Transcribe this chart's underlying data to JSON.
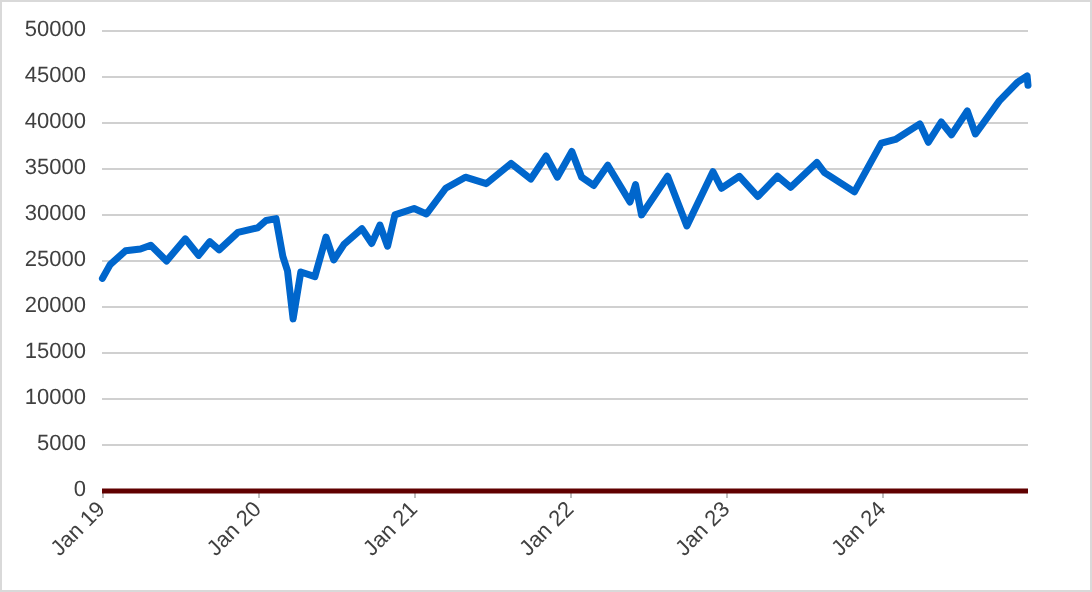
{
  "chart_data": {
    "type": "line",
    "x": [
      "2019-01-02",
      "2019-01-20",
      "2019-02-25",
      "2019-04-01",
      "2019-04-25",
      "2019-06-01",
      "2019-07-15",
      "2019-08-15",
      "2019-09-10",
      "2019-10-02",
      "2019-11-15",
      "2019-12-31",
      "2020-01-20",
      "2020-02-12",
      "2020-02-28",
      "2020-03-10",
      "2020-03-23",
      "2020-04-10",
      "2020-05-13",
      "2020-06-08",
      "2020-06-26",
      "2020-07-20",
      "2020-08-31",
      "2020-09-23",
      "2020-10-12",
      "2020-10-30",
      "2020-11-16",
      "2020-12-31",
      "2021-01-29",
      "2021-03-15",
      "2021-04-30",
      "2021-06-18",
      "2021-08-15",
      "2021-09-30",
      "2021-11-05",
      "2021-12-01",
      "2022-01-04",
      "2022-01-27",
      "2022-02-24",
      "2022-03-29",
      "2022-05-20",
      "2022-06-02",
      "2022-06-16",
      "2022-08-16",
      "2022-09-30",
      "2022-11-30",
      "2022-12-20",
      "2023-01-31",
      "2023-03-15",
      "2023-04-30",
      "2023-05-31",
      "2023-07-31",
      "2023-08-18",
      "2023-10-27",
      "2023-12-29",
      "2024-01-31",
      "2024-03-28",
      "2024-04-17",
      "2024-05-17",
      "2024-06-10",
      "2024-07-17",
      "2024-08-05",
      "2024-09-30",
      "2024-11-11",
      "2024-12-04",
      "2024-12-06"
    ],
    "series": [
      {
        "color": "#0066cc",
        "values": [
          23000,
          24500,
          26000,
          26200,
          26600,
          24900,
          27300,
          25500,
          27000,
          26100,
          28000,
          28500,
          29300,
          29500,
          25400,
          23800,
          18600,
          23700,
          23200,
          27500,
          25000,
          26700,
          28400,
          26800,
          28800,
          26500,
          29900,
          30600,
          30000,
          32800,
          34000,
          33300,
          35500,
          33800,
          36300,
          34000,
          36800,
          34000,
          33100,
          35300,
          31300,
          33200,
          29900,
          34100,
          28700,
          34600,
          32800,
          34100,
          31900,
          34100,
          32900,
          35600,
          34500,
          32400,
          37700,
          38100,
          39800,
          37800,
          40000,
          38600,
          41200,
          38700,
          42300,
          44300,
          45000,
          44000
        ]
      }
    ],
    "xlim": [
      "2019-01-01",
      "2024-12-06"
    ],
    "xticks": [
      {
        "value": "2019-01-01",
        "label": "Jan 19"
      },
      {
        "value": "2020-01-01",
        "label": "Jan 20"
      },
      {
        "value": "2021-01-01",
        "label": "Jan 21"
      },
      {
        "value": "2022-01-01",
        "label": "Jan 22"
      },
      {
        "value": "2023-01-01",
        "label": "Jan 23"
      },
      {
        "value": "2024-01-01",
        "label": "Jan 24"
      }
    ],
    "ylim": [
      0,
      50000
    ],
    "yticks": [
      0,
      5000,
      10000,
      15000,
      20000,
      25000,
      30000,
      35000,
      40000,
      45000,
      50000
    ],
    "grid": "y",
    "marker": "none",
    "line_style": "solid"
  }
}
